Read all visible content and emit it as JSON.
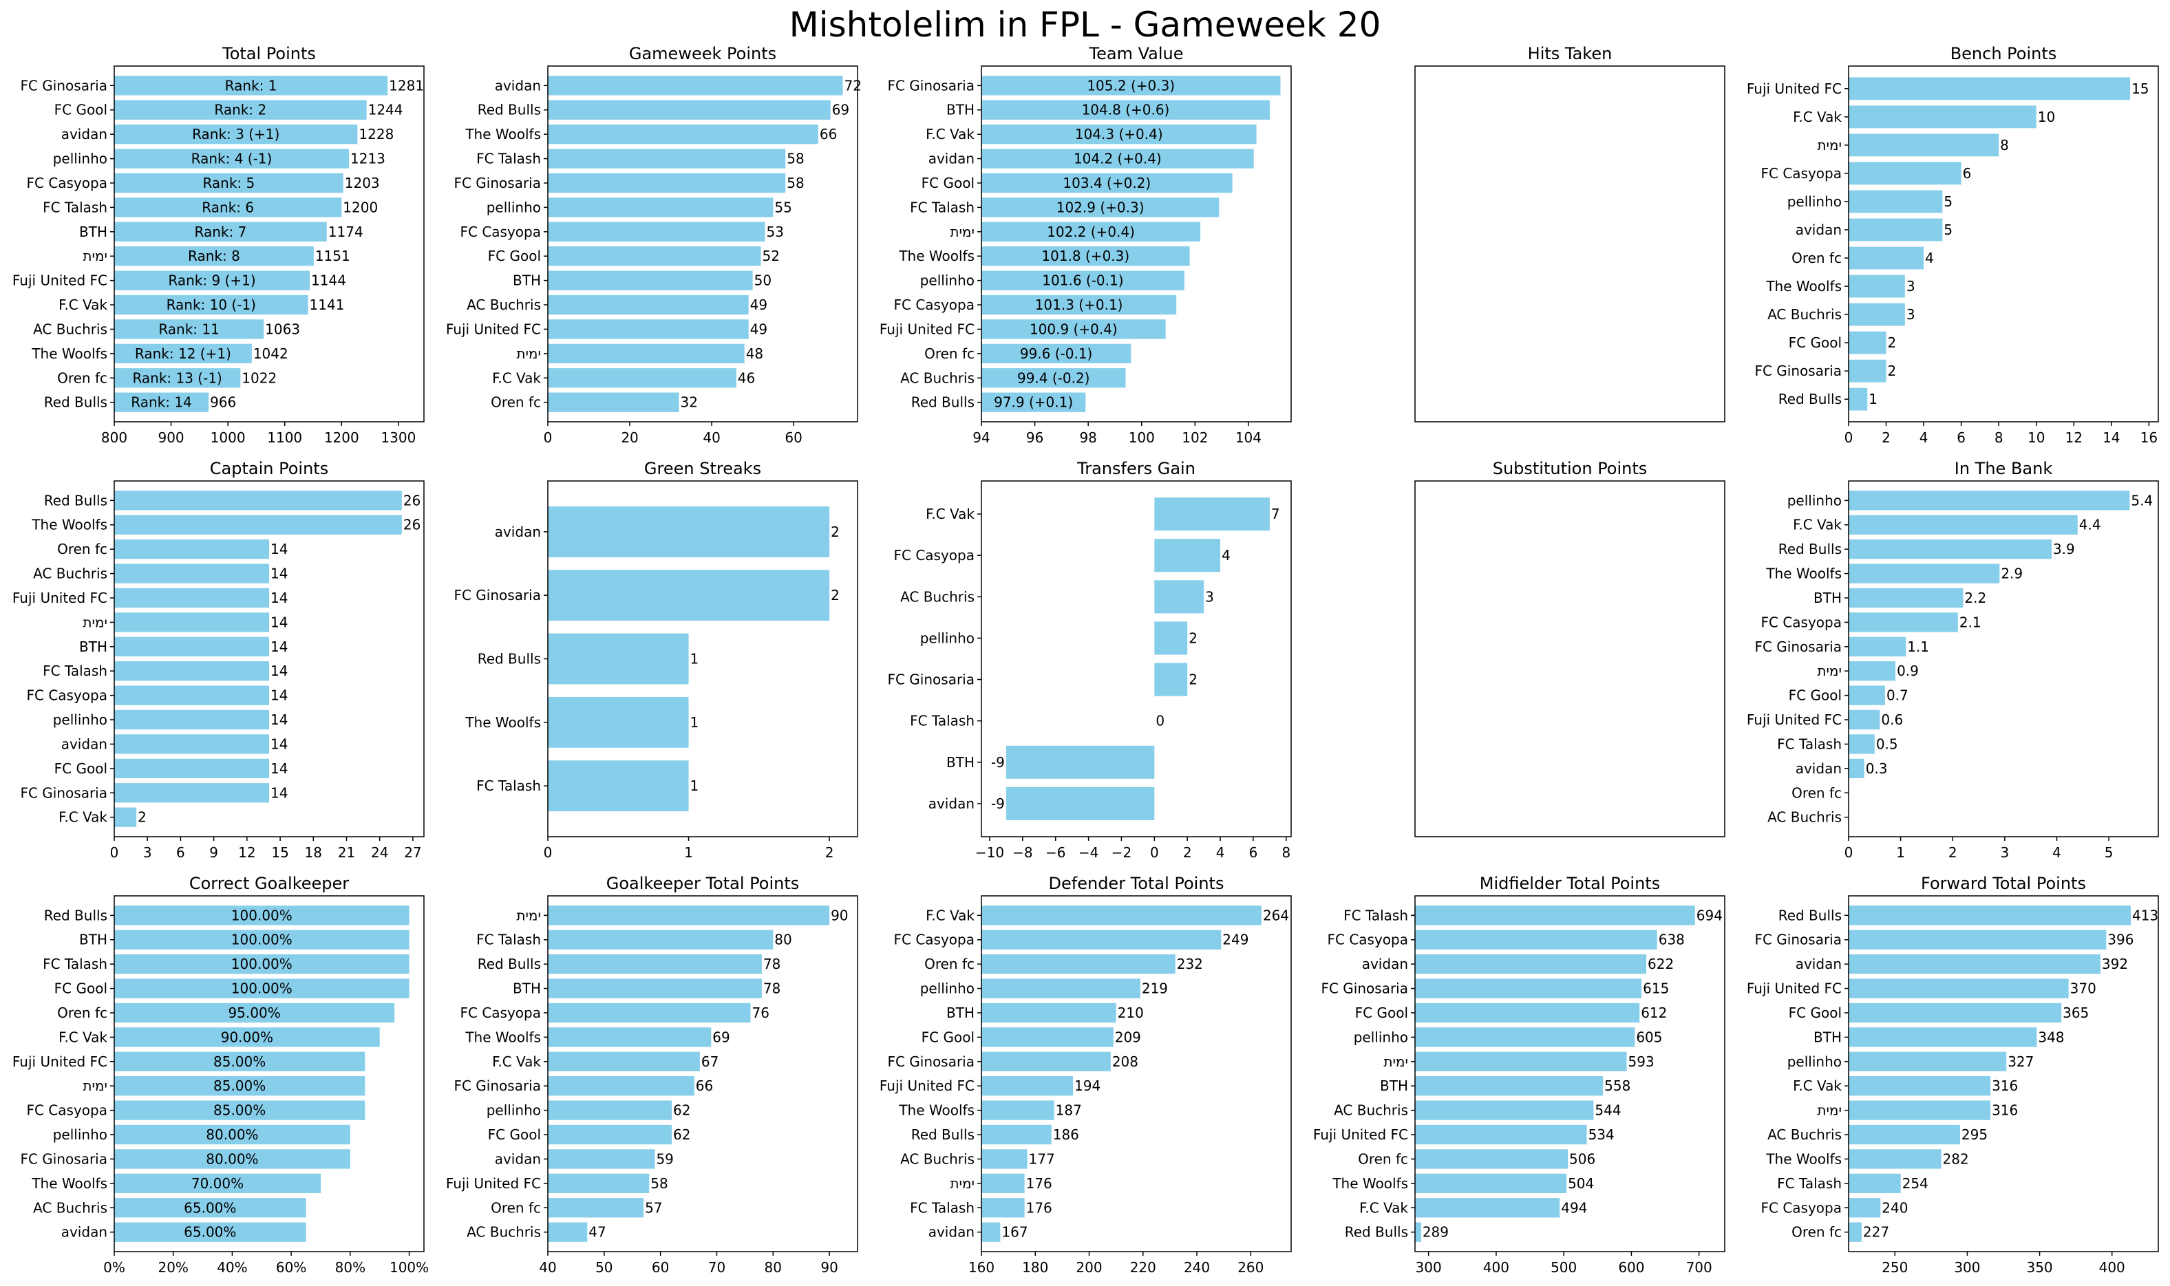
{
  "suptitle": "Mishtolelim in FPL - Gameweek 20",
  "colors": {
    "bar": "#87CEEB",
    "axis": "#000000"
  },
  "chart_data": [
    {
      "type": "bar",
      "orientation": "horizontal",
      "title": "Total Points",
      "categories": [
        "FC Ginosaria",
        "FC Gool",
        "avidan",
        "pellinho",
        "FC Casyopa",
        "FC Talash",
        "BTH",
        "ימית",
        "Fuji United FC",
        "F.C Vak",
        "AC Buchris",
        "The Woolfs",
        "Oren fc",
        "Red Bulls"
      ],
      "values": [
        1281,
        1244,
        1228,
        1213,
        1203,
        1200,
        1174,
        1151,
        1144,
        1141,
        1063,
        1042,
        1022,
        966
      ],
      "value_labels": [
        "1281",
        "1244",
        "1228",
        "1213",
        "1203",
        "1200",
        "1174",
        "1151",
        "1144",
        "1141",
        "1063",
        "1042",
        "1022",
        "966"
      ],
      "inner_labels": [
        "Rank: 1",
        "Rank: 2",
        "Rank: 3 (+1)",
        "Rank: 4 (-1)",
        "Rank: 5",
        "Rank: 6",
        "Rank: 7",
        "Rank: 8",
        "Rank: 9 (+1)",
        "Rank: 10 (-1)",
        "Rank: 11",
        "Rank: 12 (+1)",
        "Rank: 13 (-1)",
        "Rank: 14"
      ],
      "xlim": [
        800,
        1345
      ],
      "xticks": [
        800,
        900,
        1000,
        1100,
        1200,
        1300
      ],
      "xticklabels": [
        "800",
        "900",
        "1000",
        "1100",
        "1200",
        "1300"
      ]
    },
    {
      "type": "bar",
      "orientation": "horizontal",
      "title": "Gameweek Points",
      "categories": [
        "avidan",
        "Red Bulls",
        "The Woolfs",
        "FC Talash",
        "FC Ginosaria",
        "pellinho",
        "FC Casyopa",
        "FC Gool",
        "BTH",
        "AC Buchris",
        "Fuji United FC",
        "ימית",
        "F.C Vak",
        "Oren fc"
      ],
      "values": [
        72,
        69,
        66,
        58,
        58,
        55,
        53,
        52,
        50,
        49,
        49,
        48,
        46,
        32
      ],
      "value_labels": [
        "72",
        "69",
        "66",
        "58",
        "58",
        "55",
        "53",
        "52",
        "50",
        "49",
        "49",
        "48",
        "46",
        "32"
      ],
      "xlim": [
        0,
        75.6
      ],
      "xticks": [
        0,
        20,
        40,
        60
      ],
      "xticklabels": [
        "0",
        "20",
        "40",
        "60"
      ]
    },
    {
      "type": "bar",
      "orientation": "horizontal",
      "title": "Team Value",
      "categories": [
        "FC Ginosaria",
        "BTH",
        "F.C Vak",
        "avidan",
        "FC Gool",
        "FC Talash",
        "ימית",
        "The Woolfs",
        "pellinho",
        "FC Casyopa",
        "Fuji United FC",
        "Oren fc",
        "AC Buchris",
        "Red Bulls"
      ],
      "values": [
        105.2,
        104.8,
        104.3,
        104.2,
        103.4,
        102.9,
        102.2,
        101.8,
        101.6,
        101.3,
        100.9,
        99.6,
        99.4,
        97.9
      ],
      "inner_labels": [
        "105.2 (+0.3)",
        "104.8 (+0.6)",
        "104.3 (+0.4)",
        "104.2 (+0.4)",
        "103.4 (+0.2)",
        "102.9 (+0.3)",
        "102.2 (+0.4)",
        "101.8 (+0.3)",
        "101.6 (-0.1)",
        "101.3 (+0.1)",
        "100.9 (+0.4)",
        "99.6 (-0.1)",
        "99.4 (-0.2)",
        "97.9 (+0.1)"
      ],
      "xlim": [
        94,
        105.6
      ],
      "xticks": [
        94,
        96,
        98,
        100,
        102,
        104
      ],
      "xticklabels": [
        "94",
        "96",
        "98",
        "100",
        "102",
        "104"
      ]
    },
    {
      "type": "bar",
      "orientation": "horizontal",
      "title": "Hits Taken",
      "categories": [],
      "values": [],
      "empty": true
    },
    {
      "type": "bar",
      "orientation": "horizontal",
      "title": "Bench Points",
      "categories": [
        "Fuji United FC",
        "F.C Vak",
        "ימית",
        "FC Casyopa",
        "pellinho",
        "avidan",
        "Oren fc",
        "The Woolfs",
        "AC Buchris",
        "FC Gool",
        "FC Ginosaria",
        "Red Bulls"
      ],
      "values": [
        15,
        10,
        8,
        6,
        5,
        5,
        4,
        3,
        3,
        2,
        2,
        1
      ],
      "value_labels": [
        "15",
        "10",
        "8",
        "6",
        "5",
        "5",
        "4",
        "3",
        "3",
        "2",
        "2",
        "1"
      ],
      "xlim": [
        0,
        16.5
      ],
      "xticks": [
        0,
        2,
        4,
        6,
        8,
        10,
        12,
        14,
        16
      ],
      "xticklabels": [
        "0",
        "2",
        "4",
        "6",
        "8",
        "10",
        "12",
        "14",
        "16"
      ]
    },
    {
      "type": "bar",
      "orientation": "horizontal",
      "title": "Captain Points",
      "categories": [
        "Red Bulls",
        "The Woolfs",
        "Oren fc",
        "AC Buchris",
        "Fuji United FC",
        "ימית",
        "BTH",
        "FC Talash",
        "FC Casyopa",
        "pellinho",
        "avidan",
        "FC Gool",
        "FC Ginosaria",
        "F.C Vak"
      ],
      "values": [
        26,
        26,
        14,
        14,
        14,
        14,
        14,
        14,
        14,
        14,
        14,
        14,
        14,
        2
      ],
      "value_labels": [
        "26",
        "26",
        "14",
        "14",
        "14",
        "14",
        "14",
        "14",
        "14",
        "14",
        "14",
        "14",
        "14",
        "2"
      ],
      "xlim": [
        0,
        28.0
      ],
      "xticks": [
        0,
        3,
        6,
        9,
        12,
        15,
        18,
        21,
        24,
        27
      ],
      "xticklabels": [
        "0",
        "3",
        "6",
        "9",
        "12",
        "15",
        "18",
        "21",
        "24",
        "27"
      ]
    },
    {
      "type": "bar",
      "orientation": "horizontal",
      "title": "Green Streaks",
      "categories": [
        "avidan",
        "FC Ginosaria",
        "Red Bulls",
        "The Woolfs",
        "FC Talash"
      ],
      "values": [
        2,
        2,
        1,
        1,
        1
      ],
      "value_labels": [
        "2",
        "2",
        "1",
        "1",
        "1"
      ],
      "xlim": [
        0,
        2.2
      ],
      "xticks": [
        0,
        1,
        2
      ],
      "xticklabels": [
        "0",
        "1",
        "2"
      ]
    },
    {
      "type": "bar",
      "orientation": "horizontal",
      "title": "Transfers Gain",
      "categories": [
        "F.C Vak",
        "FC Casyopa",
        "AC Buchris",
        "pellinho",
        "FC Ginosaria",
        "FC Talash",
        "BTH",
        "avidan"
      ],
      "values": [
        7,
        4,
        3,
        2,
        2,
        0,
        -9,
        -9
      ],
      "value_labels": [
        "7",
        "4",
        "3",
        "2",
        "2",
        "0",
        "-9",
        "-9"
      ],
      "xlim": [
        -10.5,
        8.3
      ],
      "xticks": [
        -10,
        -8,
        -6,
        -4,
        -2,
        0,
        2,
        4,
        6,
        8
      ],
      "xticklabels": [
        "−10",
        "−8",
        "−6",
        "−4",
        "−2",
        "0",
        "2",
        "4",
        "6",
        "8"
      ]
    },
    {
      "type": "bar",
      "orientation": "horizontal",
      "title": "Substitution Points",
      "categories": [],
      "values": [],
      "empty": true
    },
    {
      "type": "bar",
      "orientation": "horizontal",
      "title": "In The Bank",
      "categories": [
        "pellinho",
        "F.C Vak",
        "Red Bulls",
        "The Woolfs",
        "BTH",
        "FC Casyopa",
        "FC Ginosaria",
        "ימית",
        "FC Gool",
        "Fuji United FC",
        "FC Talash",
        "avidan",
        "Oren fc",
        "AC Buchris"
      ],
      "values": [
        5.4,
        4.4,
        3.9,
        2.9,
        2.2,
        2.1,
        1.1,
        0.9,
        0.7,
        0.6,
        0.5,
        0.3,
        0,
        0
      ],
      "value_labels": [
        "5.4",
        "4.4",
        "3.9",
        "2.9",
        "2.2",
        "2.1",
        "1.1",
        "0.9",
        "0.7",
        "0.6",
        "0.5",
        "0.3",
        "",
        ""
      ],
      "xlim": [
        0,
        5.95
      ],
      "xticks": [
        0,
        1,
        2,
        3,
        4,
        5
      ],
      "xticklabels": [
        "0",
        "1",
        "2",
        "3",
        "4",
        "5"
      ]
    },
    {
      "type": "bar",
      "orientation": "horizontal",
      "title": "Correct Goalkeeper",
      "categories": [
        "Red Bulls",
        "BTH",
        "FC Talash",
        "FC Gool",
        "Oren fc",
        "F.C Vak",
        "Fuji United FC",
        "ימית",
        "FC Casyopa",
        "pellinho",
        "FC Ginosaria",
        "The Woolfs",
        "AC Buchris",
        "avidan"
      ],
      "values": [
        100,
        100,
        100,
        100,
        95,
        90,
        85,
        85,
        85,
        80,
        80,
        70,
        65,
        65
      ],
      "inner_labels": [
        "100.00%",
        "100.00%",
        "100.00%",
        "100.00%",
        "95.00%",
        "90.00%",
        "85.00%",
        "85.00%",
        "85.00%",
        "80.00%",
        "80.00%",
        "70.00%",
        "65.00%",
        "65.00%"
      ],
      "xlim": [
        0,
        105
      ],
      "xticks": [
        0,
        20,
        40,
        60,
        80,
        100
      ],
      "xticklabels": [
        "0%",
        "20%",
        "40%",
        "60%",
        "80%",
        "100%"
      ]
    },
    {
      "type": "bar",
      "orientation": "horizontal",
      "title": "Goalkeeper Total Points",
      "categories": [
        "ימית",
        "FC Talash",
        "Red Bulls",
        "BTH",
        "FC Casyopa",
        "The Woolfs",
        "F.C Vak",
        "FC Ginosaria",
        "pellinho",
        "FC Gool",
        "avidan",
        "Fuji United FC",
        "Oren fc",
        "AC Buchris"
      ],
      "values": [
        90,
        80,
        78,
        78,
        76,
        69,
        67,
        66,
        62,
        62,
        59,
        58,
        57,
        47
      ],
      "value_labels": [
        "90",
        "80",
        "78",
        "78",
        "76",
        "69",
        "67",
        "66",
        "62",
        "62",
        "59",
        "58",
        "57",
        "47"
      ],
      "xlim": [
        40,
        95.0
      ],
      "xticks": [
        40,
        50,
        60,
        70,
        80,
        90
      ],
      "xticklabels": [
        "40",
        "50",
        "60",
        "70",
        "80",
        "90"
      ]
    },
    {
      "type": "bar",
      "orientation": "horizontal",
      "title": "Defender Total Points",
      "categories": [
        "F.C Vak",
        "FC Casyopa",
        "Oren fc",
        "pellinho",
        "BTH",
        "FC Gool",
        "FC Ginosaria",
        "Fuji United FC",
        "The Woolfs",
        "Red Bulls",
        "AC Buchris",
        "ימית",
        "FC Talash",
        "avidan"
      ],
      "values": [
        264,
        249,
        232,
        219,
        210,
        209,
        208,
        194,
        187,
        186,
        177,
        176,
        176,
        167
      ],
      "value_labels": [
        "264",
        "249",
        "232",
        "219",
        "210",
        "209",
        "208",
        "194",
        "187",
        "186",
        "177",
        "176",
        "176",
        "167"
      ],
      "xlim": [
        160,
        275.0
      ],
      "xticks": [
        160,
        180,
        200,
        220,
        240,
        260
      ],
      "xticklabels": [
        "160",
        "180",
        "200",
        "220",
        "240",
        "260"
      ]
    },
    {
      "type": "bar",
      "orientation": "horizontal",
      "title": "Midfielder Total Points",
      "categories": [
        "FC Talash",
        "FC Casyopa",
        "avidan",
        "FC Ginosaria",
        "FC Gool",
        "pellinho",
        "ימית",
        "BTH",
        "AC Buchris",
        "Fuji United FC",
        "Oren fc",
        "The Woolfs",
        "F.C Vak",
        "Red Bulls"
      ],
      "values": [
        694,
        638,
        622,
        615,
        612,
        605,
        593,
        558,
        544,
        534,
        506,
        504,
        494,
        289
      ],
      "value_labels": [
        "694",
        "638",
        "622",
        "615",
        "612",
        "605",
        "593",
        "558",
        "544",
        "534",
        "506",
        "504",
        "494",
        "289"
      ],
      "xlim": [
        280,
        738
      ],
      "xticks": [
        300,
        400,
        500,
        600,
        700
      ],
      "xticklabels": [
        "300",
        "400",
        "500",
        "600",
        "700"
      ]
    },
    {
      "type": "bar",
      "orientation": "horizontal",
      "title": "Forward Total Points",
      "categories": [
        "Red Bulls",
        "FC Ginosaria",
        "avidan",
        "Fuji United FC",
        "FC Gool",
        "BTH",
        "pellinho",
        "F.C Vak",
        "ימית",
        "AC Buchris",
        "The Woolfs",
        "FC Talash",
        "FC Casyopa",
        "Oren fc"
      ],
      "values": [
        413,
        396,
        392,
        370,
        365,
        348,
        327,
        316,
        316,
        295,
        282,
        254,
        240,
        227
      ],
      "value_labels": [
        "413",
        "396",
        "392",
        "370",
        "365",
        "348",
        "327",
        "316",
        "316",
        "295",
        "282",
        "254",
        "240",
        "227"
      ],
      "xlim": [
        218,
        432
      ],
      "xticks": [
        250,
        300,
        350,
        400
      ],
      "xticklabels": [
        "250",
        "300",
        "350",
        "400"
      ]
    }
  ]
}
